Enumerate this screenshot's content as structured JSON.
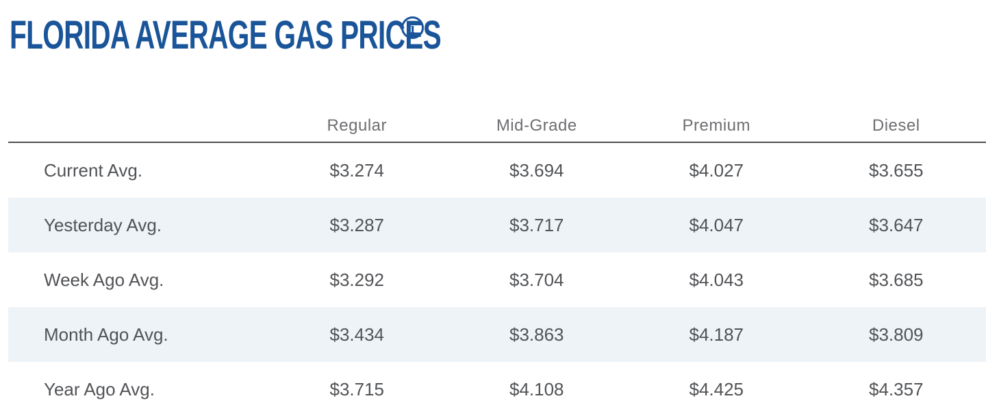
{
  "page": {
    "title": "FLORIDA AVERAGE GAS PRICES",
    "info_icon_glyph": "i"
  },
  "colors": {
    "title_blue": "#1a5499",
    "header_gray": "#6d6e71",
    "body_gray": "#515356",
    "rule_dark_gray": "#4d4d4f",
    "stripe_light_blue": "#eef3f7",
    "background": "#ffffff"
  },
  "table": {
    "columns": [
      "Regular",
      "Mid-Grade",
      "Premium",
      "Diesel"
    ],
    "rows": [
      {
        "label": "Current Avg.",
        "values": [
          "$3.274",
          "$3.694",
          "$4.027",
          "$3.655"
        ]
      },
      {
        "label": "Yesterday Avg.",
        "values": [
          "$3.287",
          "$3.717",
          "$4.047",
          "$3.647"
        ]
      },
      {
        "label": "Week Ago Avg.",
        "values": [
          "$3.292",
          "$3.704",
          "$4.043",
          "$3.685"
        ]
      },
      {
        "label": "Month Ago Avg.",
        "values": [
          "$3.434",
          "$3.863",
          "$4.187",
          "$3.809"
        ]
      },
      {
        "label": "Year Ago Avg.",
        "values": [
          "$3.715",
          "$4.108",
          "$4.425",
          "$4.357"
        ]
      }
    ]
  }
}
